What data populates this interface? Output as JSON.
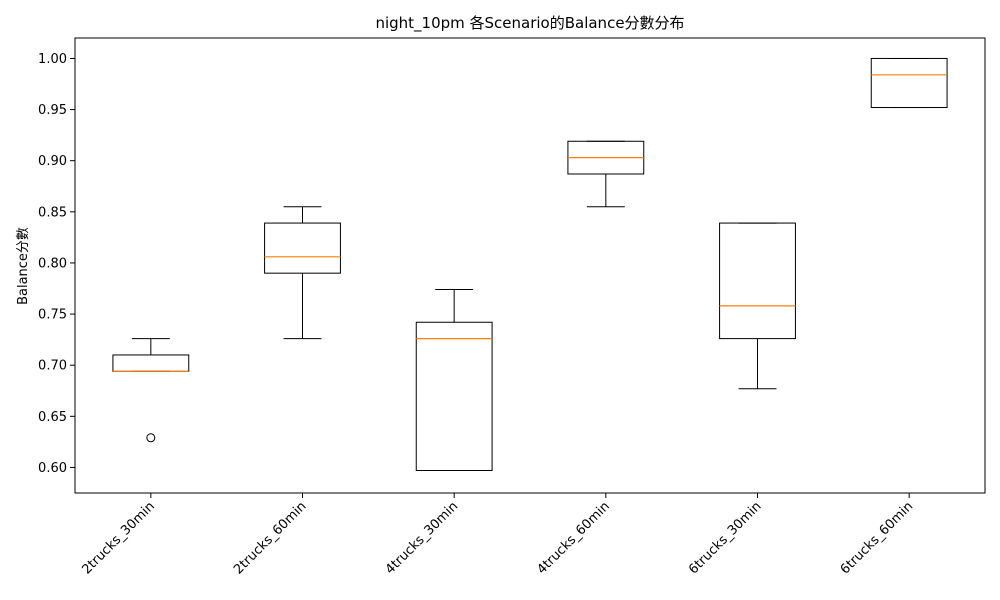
{
  "chart_data": {
    "type": "box",
    "title": "night_10pm 各Scenario的Balance分數分布",
    "xlabel": "",
    "ylabel": "Balance分數",
    "ylim": [
      0.575,
      1.02
    ],
    "yticks": [
      0.6,
      0.65,
      0.7,
      0.75,
      0.8,
      0.85,
      0.9,
      0.95,
      1.0
    ],
    "ytick_labels": [
      "0.60",
      "0.65",
      "0.70",
      "0.75",
      "0.80",
      "0.85",
      "0.90",
      "0.95",
      "1.00"
    ],
    "grid": false,
    "categories": [
      "2trucks_30min",
      "2trucks_60min",
      "4trucks_30min",
      "4trucks_60min",
      "6trucks_30min",
      "6trucks_60min"
    ],
    "boxes": [
      {
        "label": "2trucks_30min",
        "whisker_low": 0.694,
        "q1": 0.694,
        "median": 0.694,
        "q3": 0.71,
        "whisker_high": 0.726,
        "outliers": [
          0.629
        ]
      },
      {
        "label": "2trucks_60min",
        "whisker_low": 0.726,
        "q1": 0.79,
        "median": 0.806,
        "q3": 0.839,
        "whisker_high": 0.855,
        "outliers": []
      },
      {
        "label": "4trucks_30min",
        "whisker_low": 0.597,
        "q1": 0.597,
        "median": 0.726,
        "q3": 0.742,
        "whisker_high": 0.774,
        "outliers": []
      },
      {
        "label": "4trucks_60min",
        "whisker_low": 0.855,
        "q1": 0.887,
        "median": 0.903,
        "q3": 0.919,
        "whisker_high": 0.919,
        "outliers": []
      },
      {
        "label": "6trucks_30min",
        "whisker_low": 0.677,
        "q1": 0.726,
        "median": 0.758,
        "q3": 0.839,
        "whisker_high": 0.839,
        "outliers": []
      },
      {
        "label": "6trucks_60min",
        "whisker_low": 0.952,
        "q1": 0.952,
        "median": 0.984,
        "q3": 1.0,
        "whisker_high": 1.0,
        "outliers": []
      }
    ],
    "colors": {
      "box": "#000000",
      "median": "#ff7f0e",
      "background": "#ffffff"
    }
  }
}
